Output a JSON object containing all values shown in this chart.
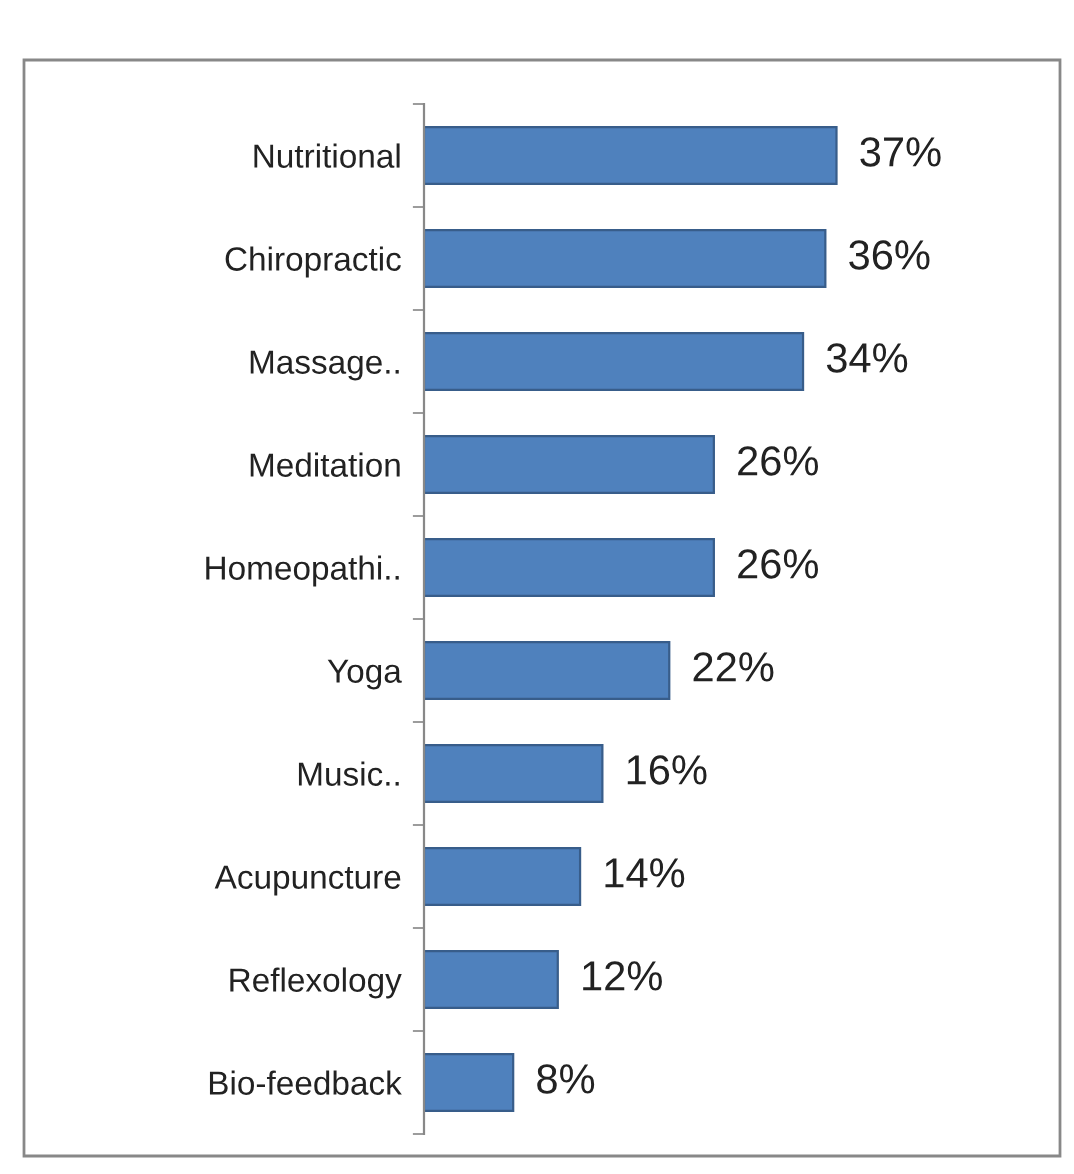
{
  "chart_data": {
    "type": "bar",
    "orientation": "horizontal",
    "categories": [
      "Nutritional",
      "Chiropractic",
      "Massage..",
      "Meditation",
      "Homeopathi..",
      "Yoga",
      "Music..",
      "Acupuncture",
      "Reflexology",
      "Bio-feedback"
    ],
    "values": [
      37,
      36,
      34,
      26,
      26,
      22,
      16,
      14,
      12,
      8
    ],
    "value_labels": [
      "37%",
      "36%",
      "34%",
      "26%",
      "26%",
      "22%",
      "16%",
      "14%",
      "12%",
      "8%"
    ],
    "colors": [
      "#4f81bd",
      "#4f81bd",
      "#4f81bd",
      "#4f81bd",
      "#4f81bd",
      "#4f81bd",
      "#4f81bd",
      "#4f81bd",
      "#4f81bd",
      "#4f81bd"
    ],
    "grid": false,
    "legend": false
  }
}
